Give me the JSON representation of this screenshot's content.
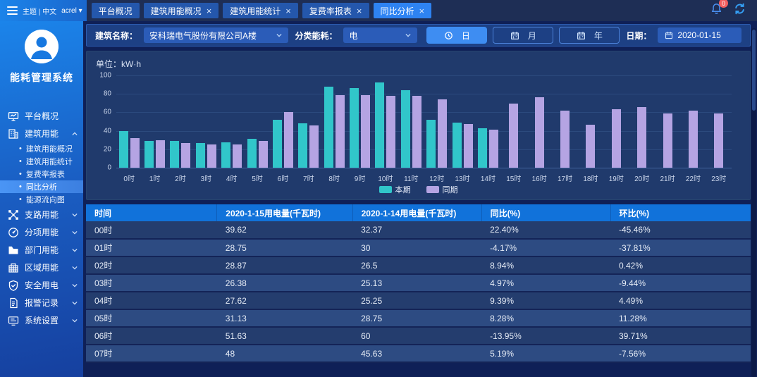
{
  "topbar": {
    "menu_label": "主题 | 中文",
    "user": "acrel",
    "notification_badge": "0",
    "tabs": [
      {
        "label": "平台概况",
        "closable": false,
        "active": false
      },
      {
        "label": "建筑用能概况",
        "closable": true,
        "active": false
      },
      {
        "label": "建筑用能统计",
        "closable": true,
        "active": false
      },
      {
        "label": "复费率报表",
        "closable": true,
        "active": false
      },
      {
        "label": "同比分析",
        "closable": true,
        "active": true
      }
    ]
  },
  "sidebar": {
    "title": "能耗管理系统",
    "items": [
      {
        "label": "平台概况",
        "icon": "monitor-icon"
      },
      {
        "label": "建筑用能",
        "icon": "building-icon",
        "expanded": true,
        "children": [
          {
            "label": "建筑用能概况",
            "active": false
          },
          {
            "label": "建筑用能统计",
            "active": false
          },
          {
            "label": "复费率报表",
            "active": false
          },
          {
            "label": "同比分析",
            "active": true
          },
          {
            "label": "能源流向图",
            "active": false
          }
        ]
      },
      {
        "label": "支路用能",
        "icon": "branch-icon",
        "expandable": true
      },
      {
        "label": "分项用能",
        "icon": "gauge-icon",
        "expandable": true
      },
      {
        "label": "部门用能",
        "icon": "folder-icon",
        "expandable": true
      },
      {
        "label": "区域用能",
        "icon": "region-icon",
        "expandable": true
      },
      {
        "label": "安全用电",
        "icon": "shield-icon",
        "expandable": true
      },
      {
        "label": "报警记录",
        "icon": "report-icon",
        "expandable": true
      },
      {
        "label": "系统设置",
        "icon": "settings-icon",
        "expandable": true
      }
    ]
  },
  "filters": {
    "building_label": "建筑名称：",
    "building_value": "安科瑞电气股份有限公司A楼",
    "energy_label": "分类能耗：",
    "energy_value": "电",
    "period_buttons": [
      {
        "label": "日",
        "icon": "clock-icon",
        "active": true
      },
      {
        "label": "月",
        "icon": "calendar-icon",
        "active": false
      },
      {
        "label": "年",
        "icon": "calendar-icon",
        "active": false
      }
    ],
    "date_label": "日期：",
    "date_value": "2020-01-15"
  },
  "chart_data": {
    "type": "bar",
    "title": "单位：kW·h",
    "unit": "kW·h",
    "xlabel": "",
    "ylabel": "kW·h",
    "ylim": [
      0,
      100
    ],
    "yticks": [
      0,
      20,
      40,
      60,
      80,
      100
    ],
    "grid": true,
    "legend_position": "bottom",
    "categories": [
      "0时",
      "1时",
      "2时",
      "3时",
      "4时",
      "5时",
      "6时",
      "7时",
      "8时",
      "9时",
      "10时",
      "11时",
      "12时",
      "13时",
      "14时",
      "15时",
      "16时",
      "17时",
      "18时",
      "19时",
      "20时",
      "21时",
      "22时",
      "23时"
    ],
    "series": [
      {
        "name": "本期",
        "color": "#31c6ca",
        "values": [
          39.62,
          28.75,
          28.87,
          26.38,
          27.62,
          31.13,
          51.63,
          48,
          88,
          86,
          92,
          84,
          52,
          48.5,
          43,
          null,
          null,
          null,
          null,
          null,
          null,
          null,
          null,
          null
        ]
      },
      {
        "name": "同期",
        "color": "#b5a4e3",
        "values": [
          32.37,
          30,
          26.5,
          25.13,
          25.25,
          28.75,
          60,
          45.63,
          79,
          79,
          77.5,
          77.5,
          74,
          47.5,
          41.5,
          69.5,
          76,
          62,
          46.5,
          63,
          66,
          58.5,
          62,
          58.5
        ]
      }
    ]
  },
  "table": {
    "headers": [
      "时间",
      "2020-1-15用电量(千瓦时)",
      "2020-1-14用电量(千瓦时)",
      "同比(%)",
      "环比(%)"
    ],
    "rows": [
      [
        "00时",
        "39.62",
        "32.37",
        "22.40%",
        "-45.46%"
      ],
      [
        "01时",
        "28.75",
        "30",
        "-4.17%",
        "-37.81%"
      ],
      [
        "02时",
        "28.87",
        "26.5",
        "8.94%",
        "0.42%"
      ],
      [
        "03时",
        "26.38",
        "25.13",
        "4.97%",
        "-9.44%"
      ],
      [
        "04时",
        "27.62",
        "25.25",
        "9.39%",
        "4.49%"
      ],
      [
        "05时",
        "31.13",
        "28.75",
        "8.28%",
        "11.28%"
      ],
      [
        "06时",
        "51.63",
        "60",
        "-13.95%",
        "39.71%"
      ],
      [
        "07时",
        "48",
        "45.63",
        "5.19%",
        "-7.56%"
      ]
    ]
  },
  "colors": {
    "accent": "#2e83f2",
    "series_current": "#31c6ca",
    "series_previous": "#b5a4e3",
    "table_header": "#1172da",
    "badge": "#f25f5f"
  }
}
